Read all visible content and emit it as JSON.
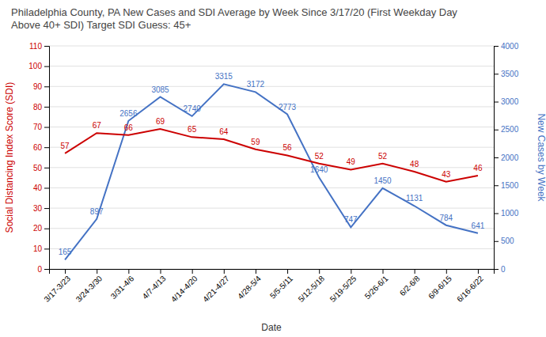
{
  "chart_data": {
    "type": "line",
    "title": "Philadelphia County, PA New Cases and SDI Average by Week Since 3/17/20 (First Weekday Day\nAbove 40+ SDI) Target SDI Guess: 45+",
    "xlabel": "Date",
    "ylabel": "Social Distancing Index Score (SDI)",
    "y2label": "New Cases by Week",
    "categories": [
      "3/17-3/23",
      "3/24-3/30",
      "3/31-4/6",
      "4/7-4/13",
      "4/14-4/20",
      "4/21-4/27",
      "4/28-5/4",
      "5/5-5/11",
      "5/12-5/18",
      "5/19-5/25",
      "5/26-6/1",
      "6/2-6/8",
      "6/9-6/15",
      "6/16-6/22"
    ],
    "series": [
      {
        "color": "#4472c4",
        "axis": "y2",
        "values": [
          165,
          897,
          2656,
          3085,
          2740,
          3315,
          3172,
          2773,
          1640,
          747,
          1450,
          1131,
          784,
          641
        ]
      },
      {
        "color": "#cc0000",
        "values": [
          57,
          67,
          66,
          69,
          65,
          64,
          59,
          56,
          52,
          49,
          52,
          48,
          43,
          46
        ]
      }
    ],
    "ylim": [
      0,
      110
    ],
    "yticks": [
      0,
      10,
      20,
      30,
      40,
      50,
      60,
      70,
      80,
      90,
      100,
      110
    ],
    "y2lim": [
      0,
      4000
    ],
    "y2ticks": [
      0,
      500,
      1000,
      1500,
      2000,
      2500,
      3000,
      3500,
      4000
    ],
    "grid": true,
    "data_labels": true
  }
}
